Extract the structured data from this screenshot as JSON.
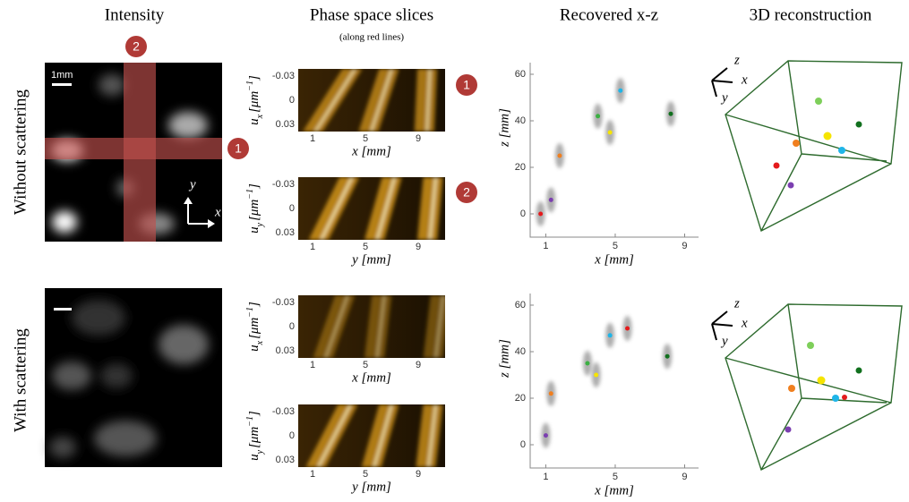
{
  "columns": [
    "Intensity",
    "Phase space slices",
    "Recovered x-z",
    "3D reconstruction"
  ],
  "phase_subtitle": "(along red lines)",
  "rows": [
    "Without scattering",
    "With scattering"
  ],
  "intensity": {
    "scale_label": "1mm",
    "axis_y": "y",
    "axis_x": "x",
    "markers": [
      "1",
      "2"
    ]
  },
  "phase": {
    "yticks": [
      "-0.03",
      "0",
      "0.03"
    ],
    "xticks": [
      "1",
      "5",
      "9"
    ],
    "ylabel_ux": [
      "u",
      "x",
      "[μm",
      "−1",
      "]"
    ],
    "ylabel_uy": [
      "u",
      "y",
      "[μm",
      "−1",
      "]"
    ],
    "xlabel_x": "x [mm]",
    "xlabel_y": "y [mm]",
    "markers": [
      "1",
      "2"
    ]
  },
  "xz": {
    "xlabel": "x [mm]",
    "ylabel": "z [mm]",
    "xlim": [
      0.1,
      9.8
    ],
    "ylim": [
      -10,
      65
    ],
    "xticks": [
      1,
      5,
      9
    ],
    "yticks": [
      0,
      20,
      40,
      60
    ],
    "plots": [
      {
        "x": [
          0.7,
          1.3,
          1.8,
          4,
          4.7,
          5.3,
          8.2
        ],
        "z": [
          0,
          6,
          25,
          42,
          35,
          53,
          43
        ],
        "colors": [
          "#e41a1c",
          "#7b3fb0",
          "#f07f1f",
          "#3cb043",
          "#f5e400",
          "#1fb5e8",
          "#11701e"
        ]
      },
      {
        "x": [
          1,
          1.3,
          3.4,
          3.9,
          4.7,
          5.7,
          8
        ],
        "z": [
          4,
          22,
          35,
          30,
          47,
          50,
          38
        ],
        "colors": [
          "#7b3fb0",
          "#f07f1f",
          "#3cb043",
          "#f5e400",
          "#1fb5e8",
          "#e41a1c",
          "#11701e"
        ]
      }
    ]
  },
  "cube": {
    "axes": [
      "z",
      "x",
      "y"
    ]
  }
}
